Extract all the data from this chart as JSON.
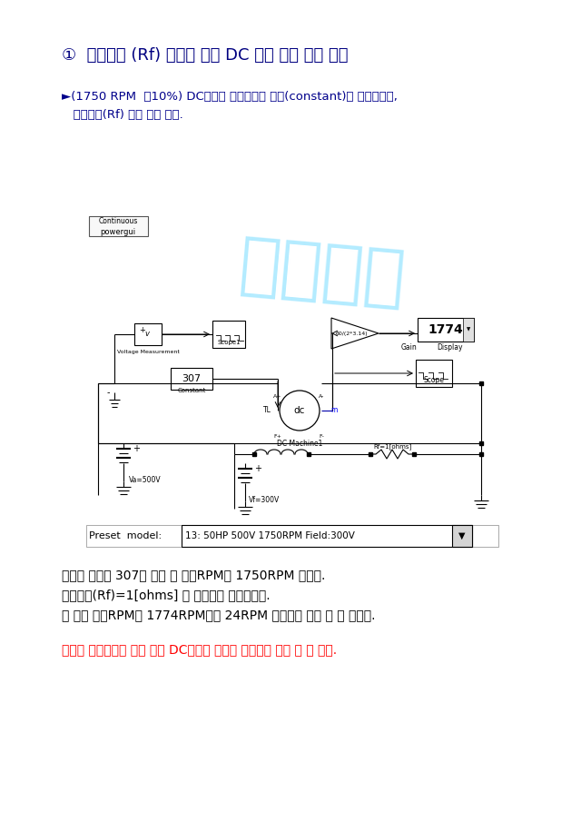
{
  "title": "①  계자저항 (Rf) 변화에 따른 DC 모터 속도 제어 방법",
  "subtitle_line1": "►(1750 RPM  ㈐10%) DC모터의 속도제어를 부하(constant)를 고정시키고,",
  "subtitle_line2": "   계자저항(Rf) 으로 제어 한다.",
  "watermark": "예리보기",
  "body_line1": "위에서 부하를 307로 맞준 후 정격RPM은 1750RPM 이였다.",
  "body_line2": "계자저항(Rf)=1[ohms] 을 계자측에 넣어주었다.",
  "body_line3": "그 결과 정격RPM이 1774RPM으로 24RPM 증가하는 것을 알 수 있었다.",
  "conclusion": "이로써 계자저항을 넣어 주면 DC모터의 속도가 증가하는 것을 볼 수 있다.",
  "preset_label": "Preset  model:",
  "preset_value": "13: 50HP 500V 1750RPM Field:300V",
  "bg_color": "#ffffff",
  "title_color": "#000080",
  "subtitle_color": "#00008B",
  "body_color": "#000000",
  "conclusion_color": "#FF0000"
}
